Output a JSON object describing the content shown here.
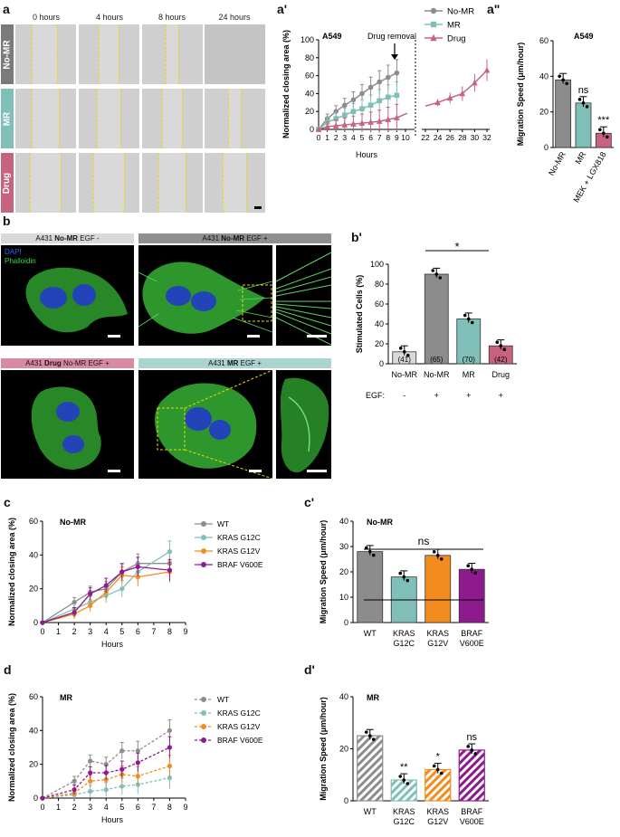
{
  "panels": {
    "a": "a",
    "a1": "a'",
    "a2": "a\"",
    "b": "b",
    "b1": "b'",
    "c": "c",
    "c1": "c'",
    "d": "d",
    "d1": "d'"
  },
  "panel_a": {
    "time_labels": [
      "0 hours",
      "4 hours",
      "8 hours",
      "24 hours"
    ],
    "row_labels": [
      "No-MR",
      "MR",
      "Drug"
    ],
    "row_colors": [
      "#7b7b7b",
      "#7fbfb7",
      "#c7637f"
    ]
  },
  "panel_b": {
    "headers": [
      {
        "pre": "A431 ",
        "bold": "No-MR",
        "post": " EGF -",
        "bg": "#d9d9d9"
      },
      {
        "pre": "A431 ",
        "bold": "No-MR",
        "post": " EGF +",
        "bg": "#8f8f8f"
      },
      {
        "pre": "A431 ",
        "bold": "Drug",
        "post": " No-MR EGF +",
        "bg": "#d98aa0"
      },
      {
        "pre": "A431 ",
        "bold": "MR",
        "post": " EGF +",
        "bg": "#a9d4cf"
      }
    ],
    "stain_dapi": "DAPI",
    "stain_phalloidin": "Phalloidin"
  },
  "chart_data": [
    {
      "id": "a-prime",
      "type": "line",
      "title": "A549",
      "xlabel": "Hours",
      "ylabel": "Normalized closing area (%)",
      "ylim": [
        0,
        100
      ],
      "x_ticks_left": [
        "0",
        "1",
        "2",
        "3",
        "4",
        "5",
        "6",
        "7",
        "8",
        "9",
        "10"
      ],
      "x_ticks_right": [
        "22",
        "24",
        "26",
        "28",
        "30",
        "32"
      ],
      "annotation": "Drug removal",
      "series": [
        {
          "name": "No-MR",
          "color": "#8c8c8c",
          "marker": "circle",
          "x": [
            0,
            1,
            2,
            3,
            4,
            5,
            6,
            7,
            8,
            9
          ],
          "y": [
            0,
            12,
            20,
            27,
            33,
            40,
            47,
            53,
            58,
            63
          ]
        },
        {
          "name": "MR",
          "color": "#7fbfb7",
          "marker": "square",
          "x": [
            0,
            1,
            2,
            3,
            4,
            5,
            6,
            7,
            8,
            9
          ],
          "y": [
            0,
            8,
            12,
            16,
            20,
            23,
            27,
            32,
            36,
            38
          ]
        },
        {
          "name": "Drug",
          "color": "#c7637f",
          "marker": "triangle",
          "x": [
            0,
            1,
            2,
            3,
            4,
            5,
            6,
            7,
            8,
            9
          ],
          "y": [
            0,
            3,
            4,
            5,
            6,
            7,
            8,
            9,
            11,
            13
          ],
          "x2": [
            24,
            26,
            28,
            30,
            32
          ],
          "y2": [
            30,
            35,
            40,
            52,
            66
          ]
        }
      ]
    },
    {
      "id": "a-double-prime",
      "type": "bar",
      "title": "A549",
      "ylabel": "Migration Speed (μm/hour)",
      "ylim": [
        0,
        60
      ],
      "yticks": [
        "0",
        "20",
        "40",
        "60"
      ],
      "categories": [
        "No-MR",
        "MR",
        "MEK + LGX818"
      ],
      "values": [
        38,
        25,
        8
      ],
      "colors": [
        "#8c8c8c",
        "#7fbfb7",
        "#c7637f"
      ],
      "annotations": [
        "",
        "ns",
        "***"
      ]
    },
    {
      "id": "b-prime",
      "type": "bar",
      "ylabel": "Stimulated Cells (%)",
      "ylim": [
        0,
        100
      ],
      "yticks": [
        "0",
        "20",
        "40",
        "60",
        "80",
        "100"
      ],
      "categories": [
        "No-MR",
        "No-MR",
        "MR",
        "Drug"
      ],
      "values": [
        12,
        90,
        45,
        18
      ],
      "counts": [
        "(41)",
        "(65)",
        "(70)",
        "(42)"
      ],
      "egf_label": "EGF:",
      "egf": [
        "-",
        "+",
        "+",
        "+"
      ],
      "colors": [
        "#d9d9d9",
        "#8c8c8c",
        "#7fbfb7",
        "#c7637f"
      ],
      "significance": "*"
    },
    {
      "id": "c",
      "type": "line",
      "title": "No-MR",
      "xlabel": "Hours",
      "ylabel": "Normalized closing area (%)",
      "ylim": [
        0,
        60
      ],
      "yticks": [
        "0",
        "20",
        "40",
        "60"
      ],
      "xticks": [
        "0",
        "1",
        "2",
        "3",
        "4",
        "5",
        "6",
        "7",
        "8",
        "9"
      ],
      "series": [
        {
          "name": "WT",
          "color": "#8c8c8c",
          "x": [
            0,
            2,
            3,
            4,
            5,
            6,
            8
          ],
          "y": [
            0,
            12,
            18,
            20,
            30,
            35,
            35
          ]
        },
        {
          "name": "KRAS G12C",
          "color": "#7fbfb7",
          "x": [
            0,
            2,
            3,
            4,
            5,
            6,
            8
          ],
          "y": [
            0,
            8,
            12,
            16,
            20,
            30,
            42
          ]
        },
        {
          "name": "KRAS G12V",
          "color": "#f28c1e",
          "x": [
            0,
            2,
            3,
            4,
            5,
            6,
            8
          ],
          "y": [
            0,
            5,
            10,
            18,
            28,
            27,
            30
          ]
        },
        {
          "name": "BRAF V600E",
          "color": "#8e1b8e",
          "x": [
            0,
            2,
            3,
            4,
            5,
            6,
            8
          ],
          "y": [
            0,
            6,
            17,
            22,
            30,
            33,
            31
          ]
        }
      ]
    },
    {
      "id": "c-prime",
      "type": "bar",
      "title": "No-MR",
      "ylabel": "Migration Speed (μm/hour)",
      "ylim": [
        0,
        40
      ],
      "yticks": [
        "0",
        "10",
        "20",
        "30",
        "40"
      ],
      "categories": [
        "WT",
        "KRAS G12C",
        "KRAS G12V",
        "BRAF V600E"
      ],
      "values": [
        28,
        18,
        26.5,
        21
      ],
      "colors": [
        "#8c8c8c",
        "#7fbfb7",
        "#f28c1e",
        "#8e1b8e"
      ],
      "significance": "ns"
    },
    {
      "id": "d",
      "type": "line",
      "title": "MR",
      "xlabel": "Hours",
      "ylabel": "Normalized closing area (%)",
      "ylim": [
        0,
        60
      ],
      "yticks": [
        "0",
        "20",
        "40",
        "60"
      ],
      "xticks": [
        "0",
        "1",
        "2",
        "3",
        "4",
        "5",
        "6",
        "7",
        "8",
        "9"
      ],
      "series": [
        {
          "name": "WT",
          "color": "#8c8c8c",
          "x": [
            0,
            2,
            3,
            4,
            5,
            6,
            8
          ],
          "y": [
            0,
            10,
            22,
            20,
            28,
            28,
            40
          ]
        },
        {
          "name": "KRAS G12C",
          "color": "#7fbfb7",
          "x": [
            0,
            2,
            3,
            4,
            5,
            6,
            8
          ],
          "y": [
            0,
            2,
            4,
            5,
            7,
            8,
            12
          ]
        },
        {
          "name": "KRAS G12V",
          "color": "#f28c1e",
          "x": [
            0,
            2,
            3,
            4,
            5,
            6,
            8
          ],
          "y": [
            0,
            3,
            10,
            11,
            14,
            13,
            19
          ]
        },
        {
          "name": "BRAF V600E",
          "color": "#8e1b8e",
          "x": [
            0,
            2,
            3,
            4,
            5,
            6,
            8
          ],
          "y": [
            0,
            5,
            15,
            15,
            17,
            21,
            30
          ]
        }
      ]
    },
    {
      "id": "d-prime",
      "type": "bar",
      "title": "MR",
      "ylabel": "Migration Speed (μm/hour)",
      "ylim": [
        0,
        40
      ],
      "yticks": [
        "0",
        "20",
        "40"
      ],
      "categories": [
        "WT",
        "KRAS G12C",
        "KRAS G12V",
        "BRAF V600E"
      ],
      "values": [
        25,
        8,
        12,
        19.5
      ],
      "colors": [
        "#8c8c8c",
        "#7fbfb7",
        "#f28c1e",
        "#8e1b8e"
      ],
      "annotations": [
        "",
        "**",
        "*",
        "ns"
      ]
    }
  ]
}
